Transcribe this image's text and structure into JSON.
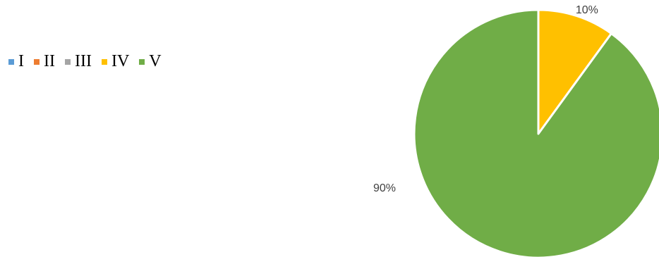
{
  "chart_data": {
    "type": "pie",
    "categories": [
      "I",
      "II",
      "III",
      "IV",
      "V"
    ],
    "values": [
      0,
      0,
      0,
      10,
      90
    ],
    "data_labels": [
      "",
      "",
      "",
      "10%",
      "90%"
    ],
    "colors": [
      "#5B9BD5",
      "#ED7D31",
      "#A5A5A5",
      "#FFC000",
      "#70AD47"
    ],
    "legend_placement": "top-left"
  }
}
